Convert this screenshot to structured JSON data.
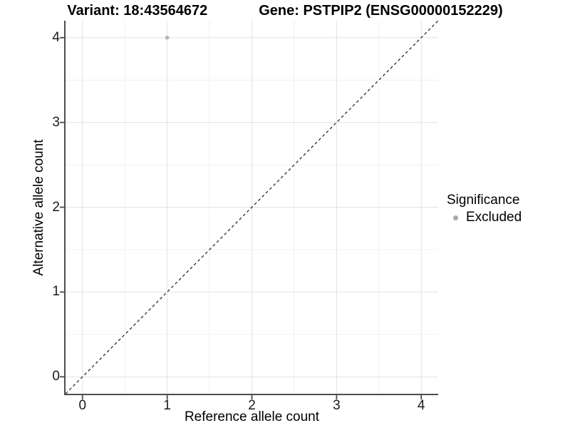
{
  "chart_data": {
    "type": "scatter",
    "title_segments": [
      "Variant: 18:43564672",
      "Gene: PSTPIP2 (ENSG00000152229)"
    ],
    "xlabel": "Reference allele count",
    "ylabel": "Alternative allele count",
    "xlim": [
      -0.2,
      4.2
    ],
    "ylim": [
      -0.2,
      4.2
    ],
    "x_ticks": [
      0,
      1,
      2,
      3,
      4
    ],
    "y_ticks": [
      0,
      1,
      2,
      3,
      4
    ],
    "x_minor_ticks": [
      0.5,
      1.5,
      2.5,
      3.5
    ],
    "y_minor_ticks": [
      0.5,
      1.5,
      2.5,
      3.5
    ],
    "grid": true,
    "points": [
      {
        "x": 1,
        "y": 4,
        "significance": "Excluded",
        "color": "#b5b5b5",
        "radius": 2.8
      }
    ],
    "identity_line": {
      "slope": 1,
      "intercept": 0,
      "style": "dashed",
      "color": "#1a1a1a"
    },
    "legend": {
      "position": "right",
      "title": "Significance",
      "entries": [
        {
          "label": "Excluded",
          "marker": "circle",
          "color": "#a9a9a9"
        }
      ]
    },
    "colors": {
      "background": "#ffffff",
      "grid_major": "#e3e3e3",
      "grid_minor": "#f1f1f1",
      "axis": "#4d4d4d",
      "text": "#000000"
    }
  }
}
